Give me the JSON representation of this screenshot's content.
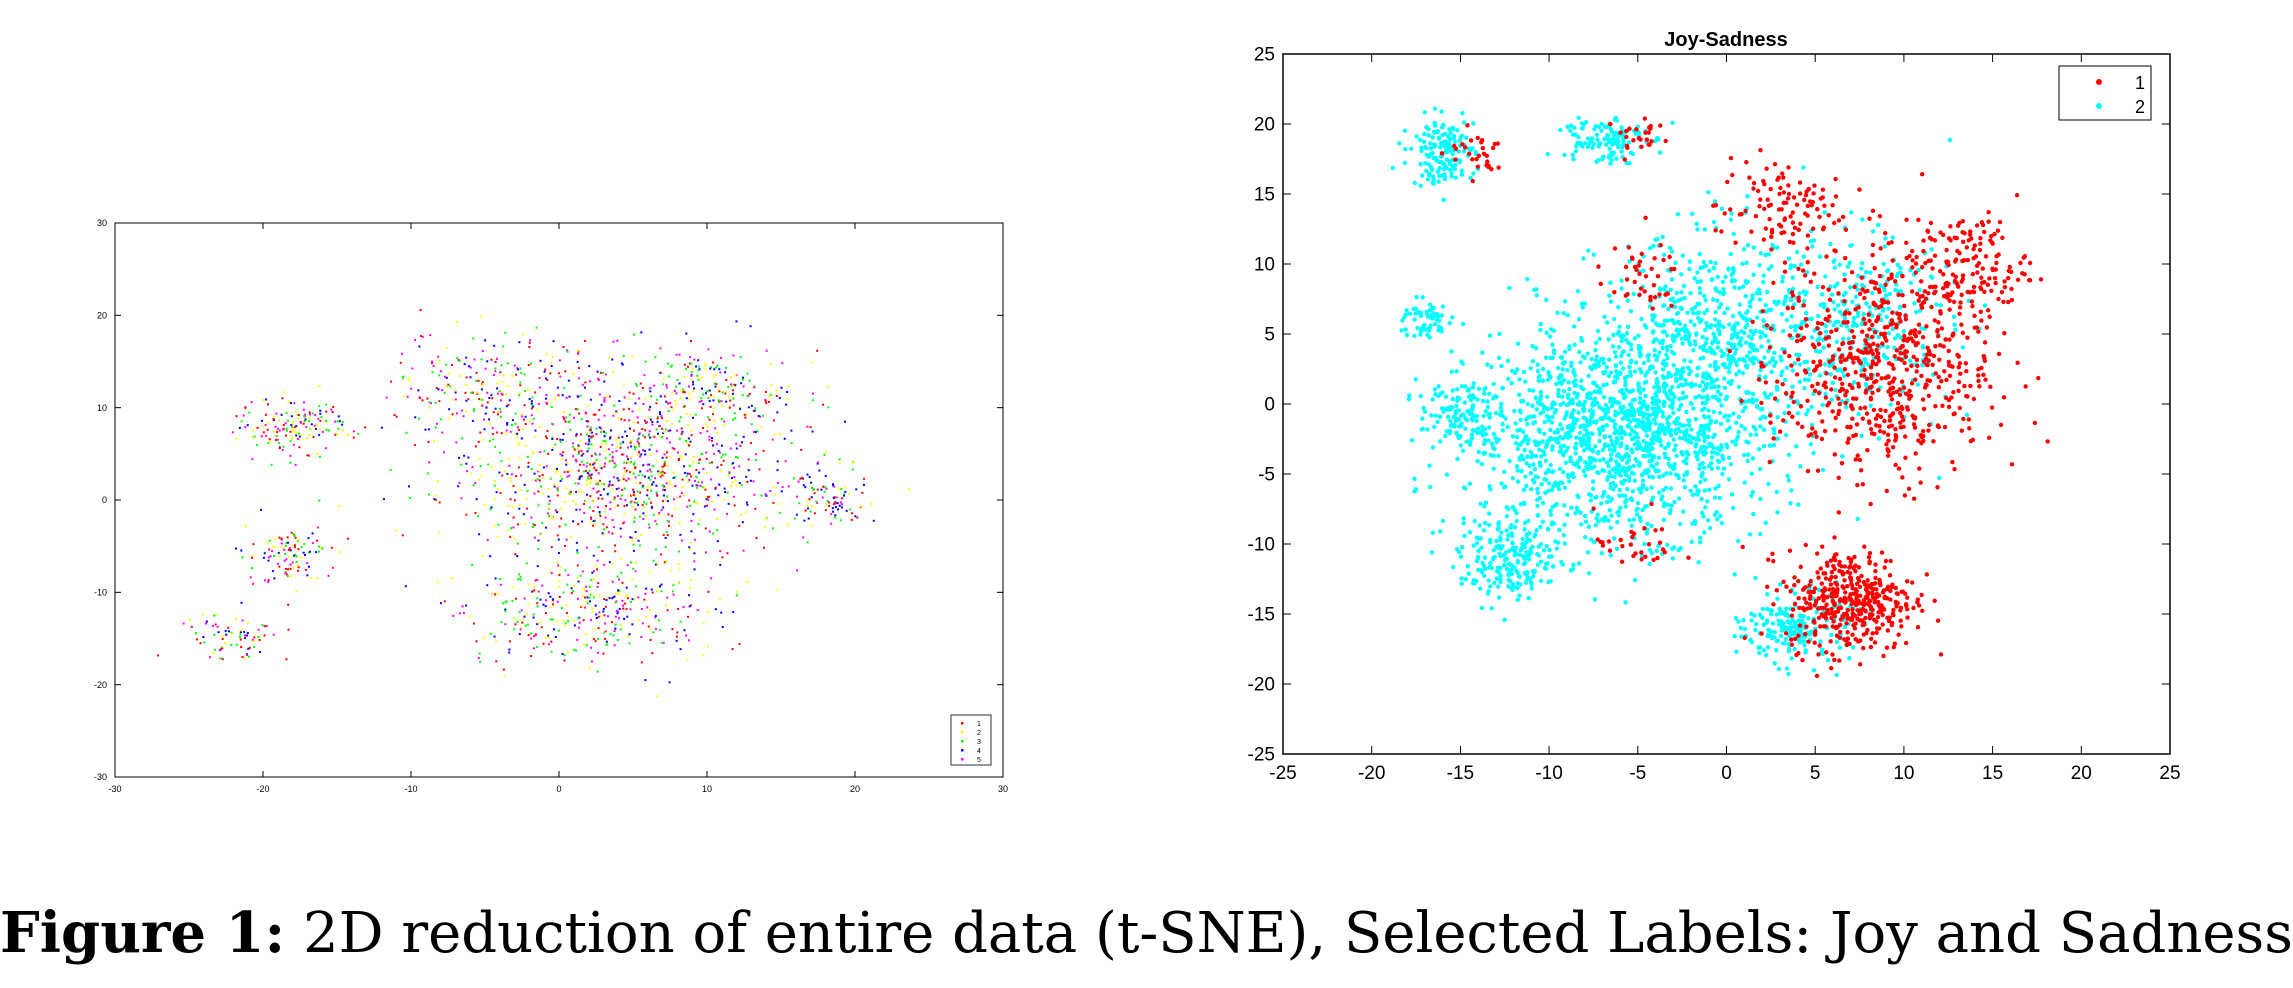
{
  "colors": {
    "axis": "#000000",
    "joy": "#ff0000",
    "sadness": "#00ffff",
    "class_1": "#ff0000",
    "class_2": "#ffff00",
    "class_3": "#00ff00",
    "class_4": "#0000ff",
    "class_5": "#ff00ff"
  },
  "caption": {
    "label": "Figure 1:",
    "text": "2D reduction of entire data (t-SNE), Selected Labels: Joy and Sadness"
  },
  "chart_data": [
    {
      "type": "scatter",
      "title": "",
      "xlim": [
        -30,
        30
      ],
      "ylim": [
        -30,
        30
      ],
      "xticks": [
        -30,
        -20,
        -10,
        0,
        10,
        20,
        30
      ],
      "yticks": [
        -30,
        -20,
        -10,
        0,
        10,
        20,
        30
      ],
      "legend_position": "bottom-right",
      "grid": false,
      "series": [
        {
          "name": "1",
          "color": "#ff0000"
        },
        {
          "name": "2",
          "color": "#ffff00"
        },
        {
          "name": "3",
          "color": "#00ff00"
        },
        {
          "name": "4",
          "color": "#0000ff"
        },
        {
          "name": "5",
          "color": "#ff00ff"
        }
      ],
      "clusters": [
        {
          "center": [
            4,
            3
          ],
          "spread": [
            10,
            8
          ],
          "count": 1100
        },
        {
          "center": [
            -4,
            12
          ],
          "spread": [
            6,
            5
          ],
          "count": 250
        },
        {
          "center": [
            10,
            12
          ],
          "spread": [
            5,
            4
          ],
          "count": 200
        },
        {
          "center": [
            -18,
            8
          ],
          "spread": [
            3,
            2.5
          ],
          "count": 160
        },
        {
          "center": [
            -18,
            -6
          ],
          "spread": [
            2.5,
            3
          ],
          "count": 110
        },
        {
          "center": [
            -22,
            -15
          ],
          "spread": [
            2.5,
            1.8
          ],
          "count": 80
        },
        {
          "center": [
            2,
            -12
          ],
          "spread": [
            7,
            5
          ],
          "count": 350
        },
        {
          "center": [
            18,
            0
          ],
          "spread": [
            2.5,
            2.5
          ],
          "count": 90
        }
      ]
    },
    {
      "type": "scatter",
      "title": "Joy-Sadness",
      "xlim": [
        -25,
        25
      ],
      "ylim": [
        -25,
        25
      ],
      "xticks": [
        -25,
        -20,
        -15,
        -10,
        -5,
        0,
        5,
        10,
        15,
        20,
        25
      ],
      "yticks": [
        -25,
        -20,
        -15,
        -10,
        -5,
        0,
        5,
        10,
        15,
        20,
        25
      ],
      "legend_position": "top-right",
      "grid": false,
      "series": [
        {
          "name": "1",
          "color": "#ff0000",
          "clusters": [
            {
              "center": [
                9,
                3
              ],
              "spread": [
                5,
                7
              ],
              "count": 650
            },
            {
              "center": [
                7,
                -14
              ],
              "spread": [
                3,
                3
              ],
              "count": 420
            },
            {
              "center": [
                14,
                10
              ],
              "spread": [
                2.5,
                3
              ],
              "count": 120
            },
            {
              "center": [
                3,
                14
              ],
              "spread": [
                3,
                3
              ],
              "count": 110
            },
            {
              "center": [
                -14,
                18
              ],
              "spread": [
                1.5,
                1.5
              ],
              "count": 30
            },
            {
              "center": [
                -5,
                19
              ],
              "spread": [
                1.5,
                1.2
              ],
              "count": 25
            },
            {
              "center": [
                -5,
                9
              ],
              "spread": [
                2,
                2
              ],
              "count": 40
            },
            {
              "center": [
                -5,
                -10
              ],
              "spread": [
                2,
                2
              ],
              "count": 30
            }
          ]
        },
        {
          "name": "2",
          "color": "#00ffff",
          "clusters": [
            {
              "center": [
                -6,
                -2
              ],
              "spread": [
                7,
                6
              ],
              "count": 1500
            },
            {
              "center": [
                0,
                5
              ],
              "spread": [
                6,
                6
              ],
              "count": 600
            },
            {
              "center": [
                -12,
                -11
              ],
              "spread": [
                2.5,
                2.5
              ],
              "count": 220
            },
            {
              "center": [
                -16,
                18
              ],
              "spread": [
                1.5,
                2
              ],
              "count": 160
            },
            {
              "center": [
                -7,
                19
              ],
              "spread": [
                2,
                1.5
              ],
              "count": 120
            },
            {
              "center": [
                -17,
                6
              ],
              "spread": [
                1.2,
                1.2
              ],
              "count": 60
            },
            {
              "center": [
                4,
                -16
              ],
              "spread": [
                2.5,
                2
              ],
              "count": 200
            },
            {
              "center": [
                8,
                6
              ],
              "spread": [
                4,
                5
              ],
              "count": 250
            },
            {
              "center": [
                -15,
                -1
              ],
              "spread": [
                2,
                2
              ],
              "count": 120
            }
          ]
        }
      ]
    }
  ]
}
